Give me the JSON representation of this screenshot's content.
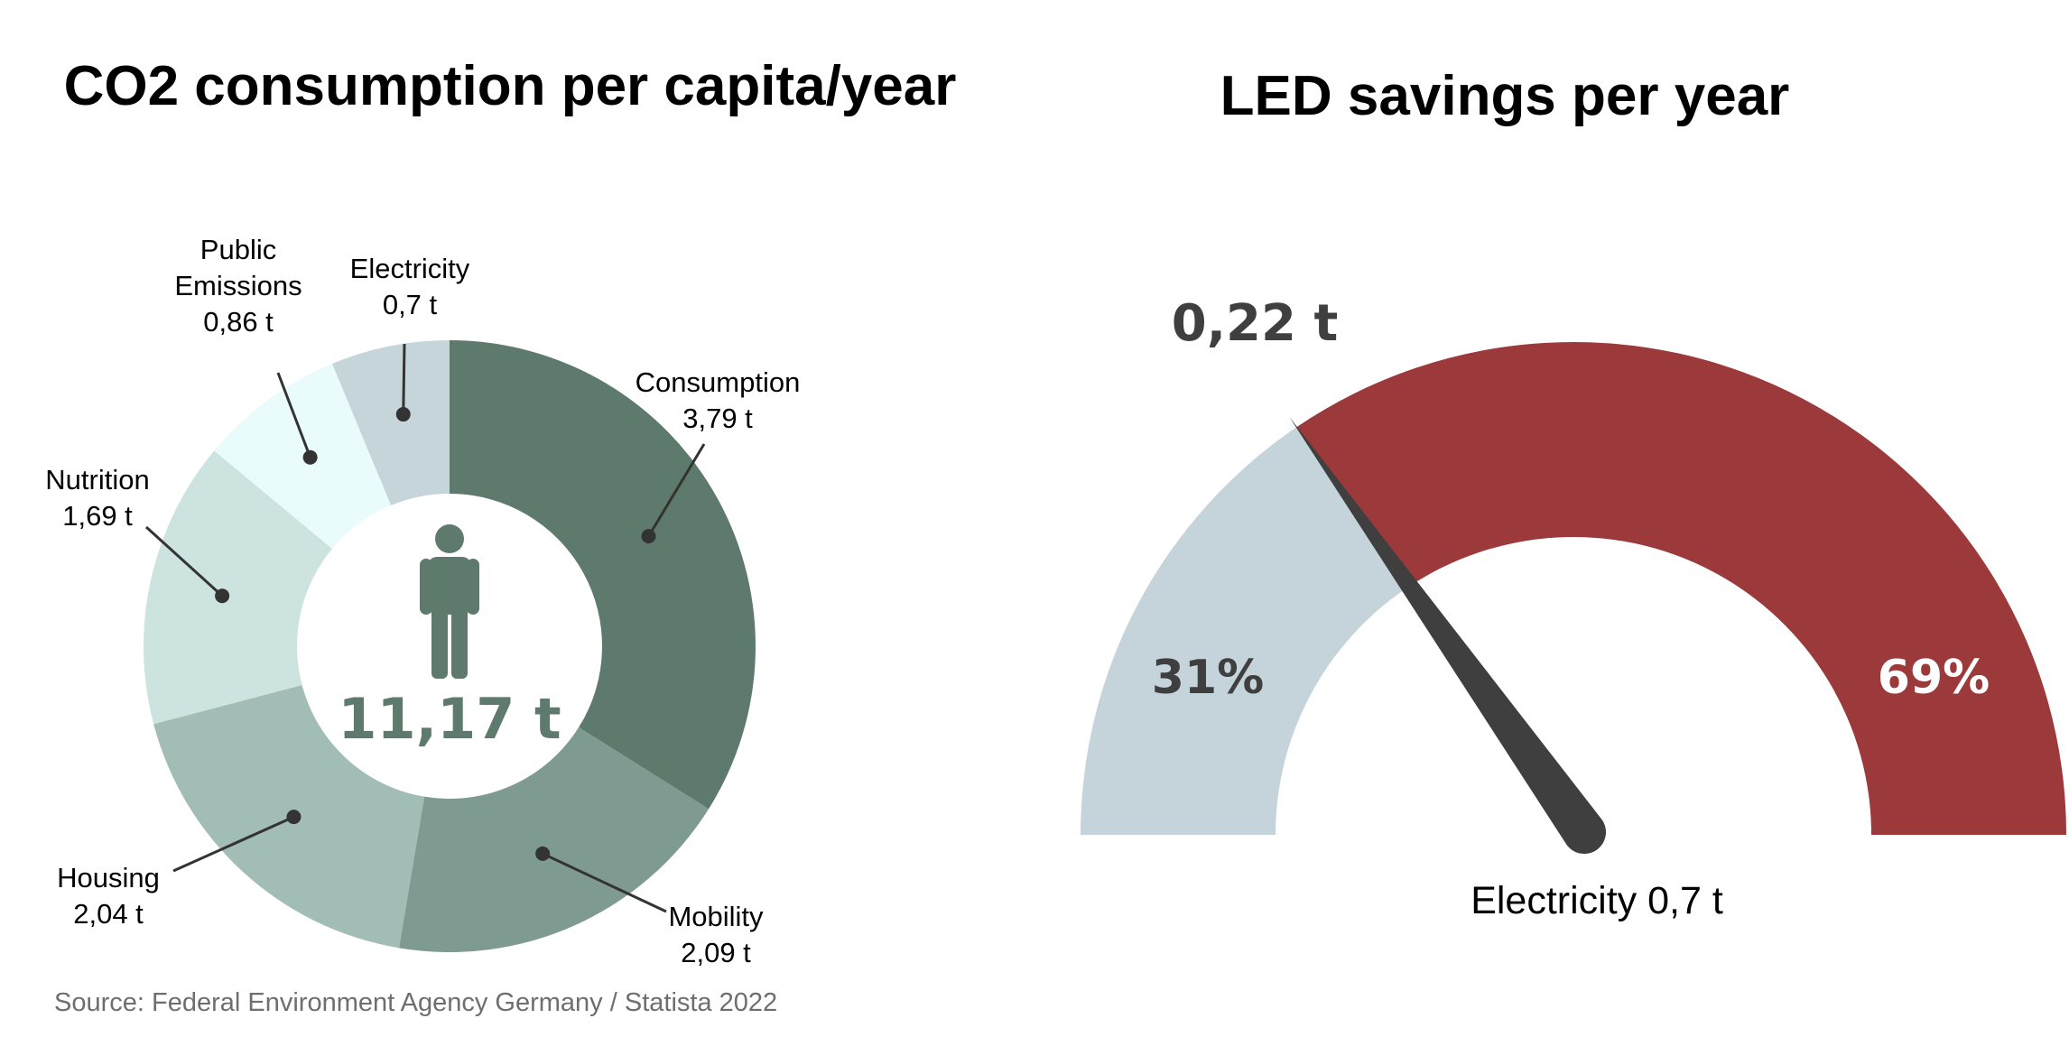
{
  "chart_data": [
    {
      "type": "pie",
      "variant": "donut",
      "title": "CO2 consumption per capita/year",
      "center_label": "11,17 t",
      "center_icon": "person-icon",
      "slices": [
        {
          "name": "Consumption",
          "value": 3.79,
          "value_label": "3,79 t",
          "color": "#5e7a6c"
        },
        {
          "name": "Mobility",
          "value": 2.09,
          "value_label": "2,09 t",
          "color": "#7f9a91"
        },
        {
          "name": "Housing",
          "value": 2.04,
          "value_label": "2,04 t",
          "color": "#a2bcb6"
        },
        {
          "name": "Nutrition",
          "value": 1.69,
          "value_label": "1,69 t",
          "color": "#cde3df"
        },
        {
          "name": "Public\nEmissions",
          "value": 0.86,
          "value_label": "0,86 t",
          "color": "#e9fbfb"
        },
        {
          "name": "Electricity",
          "value": 0.7,
          "value_label": "0,7 t",
          "color": "#c5d5da"
        }
      ],
      "source": "Source: Federal Environment Agency Germany / Statista 2022"
    },
    {
      "type": "gauge",
      "title": "LED savings per year",
      "needle_label": "0,22 t",
      "caption": "Electricity 0,7 t",
      "segments": [
        {
          "label": "31%",
          "value": 31,
          "color": "#c5d4da",
          "text_color": "#3f3f3f"
        },
        {
          "label": "69%",
          "value": 69,
          "color": "#9b393b",
          "text_color": "#ffffff"
        }
      ],
      "needle_color": "#3f3f3f"
    }
  ]
}
